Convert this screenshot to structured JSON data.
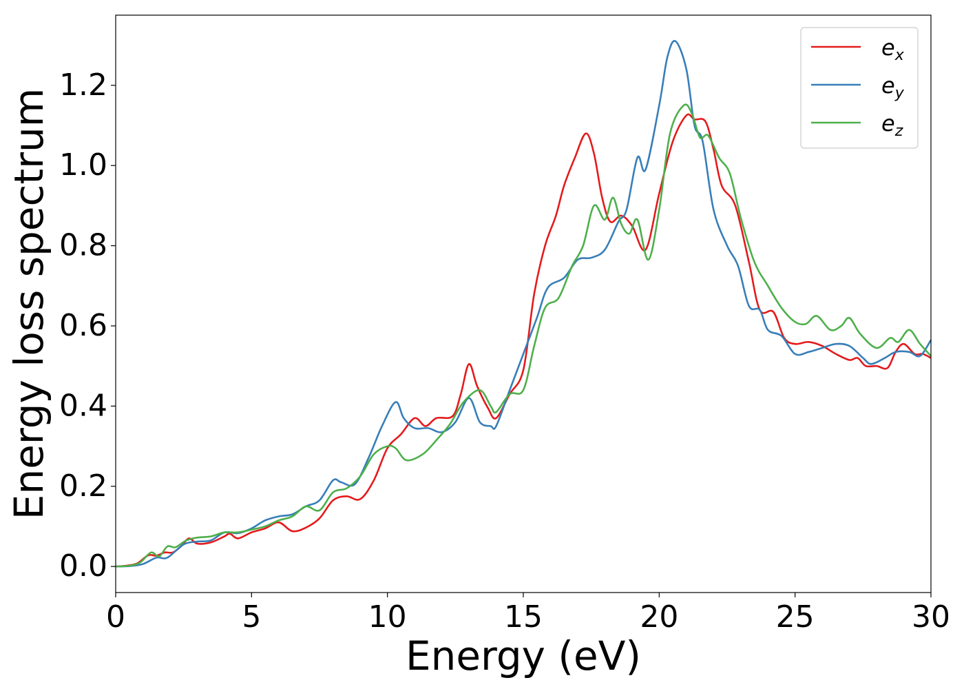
{
  "chart_data": {
    "type": "line",
    "xlabel": "Energy (eV)",
    "ylabel": "Energy loss spectrum",
    "xlim": [
      0,
      30
    ],
    "ylim": [
      -0.065,
      1.375
    ],
    "xticks": [
      0,
      5,
      10,
      15,
      20,
      25,
      30
    ],
    "yticks": [
      0.0,
      0.2,
      0.4,
      0.6,
      0.8,
      1.0,
      1.2
    ],
    "xtick_labels": [
      "0",
      "5",
      "10",
      "15",
      "20",
      "25",
      "30"
    ],
    "ytick_labels": [
      "0.0",
      "0.2",
      "0.4",
      "0.6",
      "0.8",
      "1.0",
      "1.2"
    ],
    "grid": false,
    "legend_position": "top-right",
    "series": [
      {
        "name": "e_x",
        "legend_base": "e",
        "legend_sub": "x",
        "color": "#e41a1c",
        "points": [
          [
            0,
            0
          ],
          [
            0.4,
            0.002
          ],
          [
            0.8,
            0.008
          ],
          [
            1.2,
            0.028
          ],
          [
            1.5,
            0.027
          ],
          [
            1.8,
            0.035
          ],
          [
            2.1,
            0.035
          ],
          [
            2.4,
            0.05
          ],
          [
            2.7,
            0.07
          ],
          [
            3.0,
            0.057
          ],
          [
            3.5,
            0.06
          ],
          [
            4.0,
            0.075
          ],
          [
            4.2,
            0.082
          ],
          [
            4.5,
            0.07
          ],
          [
            5.0,
            0.085
          ],
          [
            5.5,
            0.095
          ],
          [
            6.0,
            0.11
          ],
          [
            6.5,
            0.088
          ],
          [
            7.0,
            0.097
          ],
          [
            7.5,
            0.12
          ],
          [
            8.0,
            0.165
          ],
          [
            8.5,
            0.175
          ],
          [
            9.0,
            0.168
          ],
          [
            9.5,
            0.215
          ],
          [
            10.0,
            0.295
          ],
          [
            10.5,
            0.33
          ],
          [
            11.0,
            0.37
          ],
          [
            11.4,
            0.35
          ],
          [
            11.8,
            0.37
          ],
          [
            12.4,
            0.375
          ],
          [
            12.7,
            0.43
          ],
          [
            13.0,
            0.505
          ],
          [
            13.3,
            0.45
          ],
          [
            13.7,
            0.395
          ],
          [
            14.0,
            0.37
          ],
          [
            14.5,
            0.43
          ],
          [
            15.0,
            0.49
          ],
          [
            15.4,
            0.68
          ],
          [
            15.8,
            0.8
          ],
          [
            16.2,
            0.875
          ],
          [
            16.5,
            0.95
          ],
          [
            16.9,
            1.02
          ],
          [
            17.3,
            1.08
          ],
          [
            17.6,
            1.03
          ],
          [
            17.9,
            0.92
          ],
          [
            18.2,
            0.86
          ],
          [
            18.6,
            0.875
          ],
          [
            19.0,
            0.85
          ],
          [
            19.5,
            0.79
          ],
          [
            20.0,
            0.93
          ],
          [
            20.5,
            1.06
          ],
          [
            21.0,
            1.125
          ],
          [
            21.3,
            1.115
          ],
          [
            21.7,
            1.11
          ],
          [
            22.0,
            1.04
          ],
          [
            22.3,
            0.95
          ],
          [
            22.8,
            0.9
          ],
          [
            23.3,
            0.76
          ],
          [
            23.7,
            0.64
          ],
          [
            24.2,
            0.635
          ],
          [
            24.6,
            0.57
          ],
          [
            25.0,
            0.555
          ],
          [
            25.5,
            0.56
          ],
          [
            26.0,
            0.55
          ],
          [
            26.5,
            0.53
          ],
          [
            27.0,
            0.515
          ],
          [
            27.3,
            0.52
          ],
          [
            27.6,
            0.5
          ],
          [
            28.0,
            0.5
          ],
          [
            28.4,
            0.495
          ],
          [
            28.7,
            0.535
          ],
          [
            29.0,
            0.555
          ],
          [
            29.4,
            0.53
          ],
          [
            29.7,
            0.53
          ],
          [
            30.0,
            0.52
          ]
        ]
      },
      {
        "name": "e_y",
        "legend_base": "e",
        "legend_sub": "y",
        "color": "#377eb8",
        "points": [
          [
            0,
            0
          ],
          [
            0.5,
            0.001
          ],
          [
            1.0,
            0.006
          ],
          [
            1.5,
            0.022
          ],
          [
            1.9,
            0.022
          ],
          [
            2.5,
            0.055
          ],
          [
            3.0,
            0.062
          ],
          [
            3.5,
            0.065
          ],
          [
            4.0,
            0.085
          ],
          [
            4.5,
            0.083
          ],
          [
            5.0,
            0.095
          ],
          [
            5.5,
            0.115
          ],
          [
            6.0,
            0.125
          ],
          [
            6.5,
            0.13
          ],
          [
            7.0,
            0.15
          ],
          [
            7.5,
            0.165
          ],
          [
            8.0,
            0.215
          ],
          [
            8.3,
            0.21
          ],
          [
            8.8,
            0.205
          ],
          [
            9.3,
            0.27
          ],
          [
            9.8,
            0.35
          ],
          [
            10.3,
            0.41
          ],
          [
            10.6,
            0.37
          ],
          [
            11.0,
            0.345
          ],
          [
            11.5,
            0.345
          ],
          [
            12.0,
            0.335
          ],
          [
            12.5,
            0.36
          ],
          [
            13.0,
            0.42
          ],
          [
            13.4,
            0.36
          ],
          [
            13.8,
            0.35
          ],
          [
            14.0,
            0.35
          ],
          [
            14.5,
            0.44
          ],
          [
            15.0,
            0.53
          ],
          [
            15.5,
            0.62
          ],
          [
            15.9,
            0.695
          ],
          [
            16.5,
            0.72
          ],
          [
            17.0,
            0.765
          ],
          [
            17.5,
            0.77
          ],
          [
            18.0,
            0.79
          ],
          [
            18.5,
            0.86
          ],
          [
            18.8,
            0.89
          ],
          [
            19.2,
            1.02
          ],
          [
            19.5,
            0.99
          ],
          [
            20.0,
            1.15
          ],
          [
            20.3,
            1.27
          ],
          [
            20.6,
            1.31
          ],
          [
            21.0,
            1.24
          ],
          [
            21.3,
            1.1
          ],
          [
            21.6,
            1.06
          ],
          [
            22.0,
            0.89
          ],
          [
            22.5,
            0.8
          ],
          [
            22.9,
            0.75
          ],
          [
            23.3,
            0.65
          ],
          [
            23.7,
            0.64
          ],
          [
            24.0,
            0.59
          ],
          [
            24.5,
            0.575
          ],
          [
            25.0,
            0.53
          ],
          [
            25.5,
            0.535
          ],
          [
            26.0,
            0.545
          ],
          [
            26.5,
            0.555
          ],
          [
            27.0,
            0.55
          ],
          [
            27.5,
            0.52
          ],
          [
            27.8,
            0.505
          ],
          [
            28.3,
            0.52
          ],
          [
            28.7,
            0.535
          ],
          [
            29.2,
            0.535
          ],
          [
            29.6,
            0.525
          ],
          [
            30.0,
            0.565
          ]
        ]
      },
      {
        "name": "e_z",
        "legend_base": "e",
        "legend_sub": "z",
        "color": "#4daf4a",
        "points": [
          [
            0,
            0
          ],
          [
            0.5,
            0.002
          ],
          [
            0.9,
            0.01
          ],
          [
            1.3,
            0.035
          ],
          [
            1.6,
            0.025
          ],
          [
            1.9,
            0.05
          ],
          [
            2.2,
            0.048
          ],
          [
            2.6,
            0.065
          ],
          [
            3.0,
            0.072
          ],
          [
            3.5,
            0.075
          ],
          [
            4.0,
            0.085
          ],
          [
            4.5,
            0.085
          ],
          [
            5.0,
            0.092
          ],
          [
            5.5,
            0.1
          ],
          [
            6.0,
            0.115
          ],
          [
            6.5,
            0.125
          ],
          [
            7.0,
            0.15
          ],
          [
            7.5,
            0.14
          ],
          [
            8.0,
            0.185
          ],
          [
            8.5,
            0.195
          ],
          [
            9.0,
            0.225
          ],
          [
            9.5,
            0.28
          ],
          [
            10.0,
            0.3
          ],
          [
            10.3,
            0.295
          ],
          [
            10.7,
            0.265
          ],
          [
            11.3,
            0.28
          ],
          [
            11.8,
            0.315
          ],
          [
            12.3,
            0.355
          ],
          [
            12.8,
            0.41
          ],
          [
            13.4,
            0.44
          ],
          [
            13.8,
            0.4
          ],
          [
            14.0,
            0.385
          ],
          [
            14.5,
            0.43
          ],
          [
            15.0,
            0.44
          ],
          [
            15.4,
            0.55
          ],
          [
            15.8,
            0.645
          ],
          [
            16.3,
            0.67
          ],
          [
            16.8,
            0.75
          ],
          [
            17.2,
            0.8
          ],
          [
            17.6,
            0.9
          ],
          [
            18.0,
            0.865
          ],
          [
            18.3,
            0.92
          ],
          [
            18.6,
            0.855
          ],
          [
            18.9,
            0.83
          ],
          [
            19.2,
            0.865
          ],
          [
            19.6,
            0.765
          ],
          [
            20.0,
            0.89
          ],
          [
            20.4,
            1.08
          ],
          [
            20.9,
            1.15
          ],
          [
            21.2,
            1.13
          ],
          [
            21.5,
            1.07
          ],
          [
            21.8,
            1.075
          ],
          [
            22.2,
            1.02
          ],
          [
            22.6,
            0.98
          ],
          [
            23.0,
            0.87
          ],
          [
            23.5,
            0.76
          ],
          [
            24.0,
            0.7
          ],
          [
            24.5,
            0.645
          ],
          [
            25.0,
            0.61
          ],
          [
            25.4,
            0.605
          ],
          [
            25.8,
            0.625
          ],
          [
            26.3,
            0.59
          ],
          [
            26.7,
            0.6
          ],
          [
            27.0,
            0.62
          ],
          [
            27.4,
            0.58
          ],
          [
            28.0,
            0.545
          ],
          [
            28.5,
            0.57
          ],
          [
            28.8,
            0.56
          ],
          [
            29.2,
            0.59
          ],
          [
            29.6,
            0.555
          ],
          [
            30.0,
            0.525
          ]
        ]
      }
    ]
  }
}
